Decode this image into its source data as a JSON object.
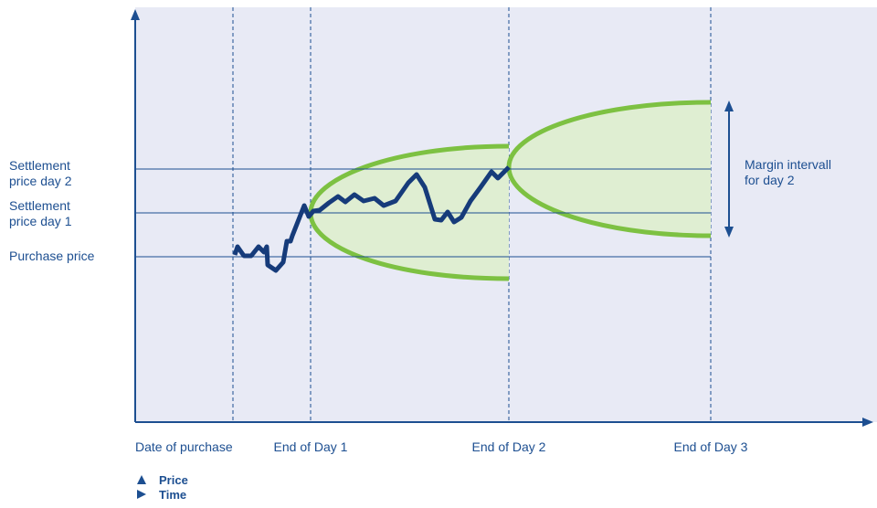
{
  "y_labels": [
    [
      "Settlement",
      "price day 2"
    ],
    [
      "Settlement",
      "price day 1"
    ],
    [
      "Purchase price"
    ]
  ],
  "x_labels": [
    "Date of purchase",
    "End of Day 1",
    "End of Day 2",
    "End of Day 3"
  ],
  "annotation": [
    "Margin intervall",
    "for day 2"
  ],
  "legend": [
    "Price",
    "Time"
  ]
}
